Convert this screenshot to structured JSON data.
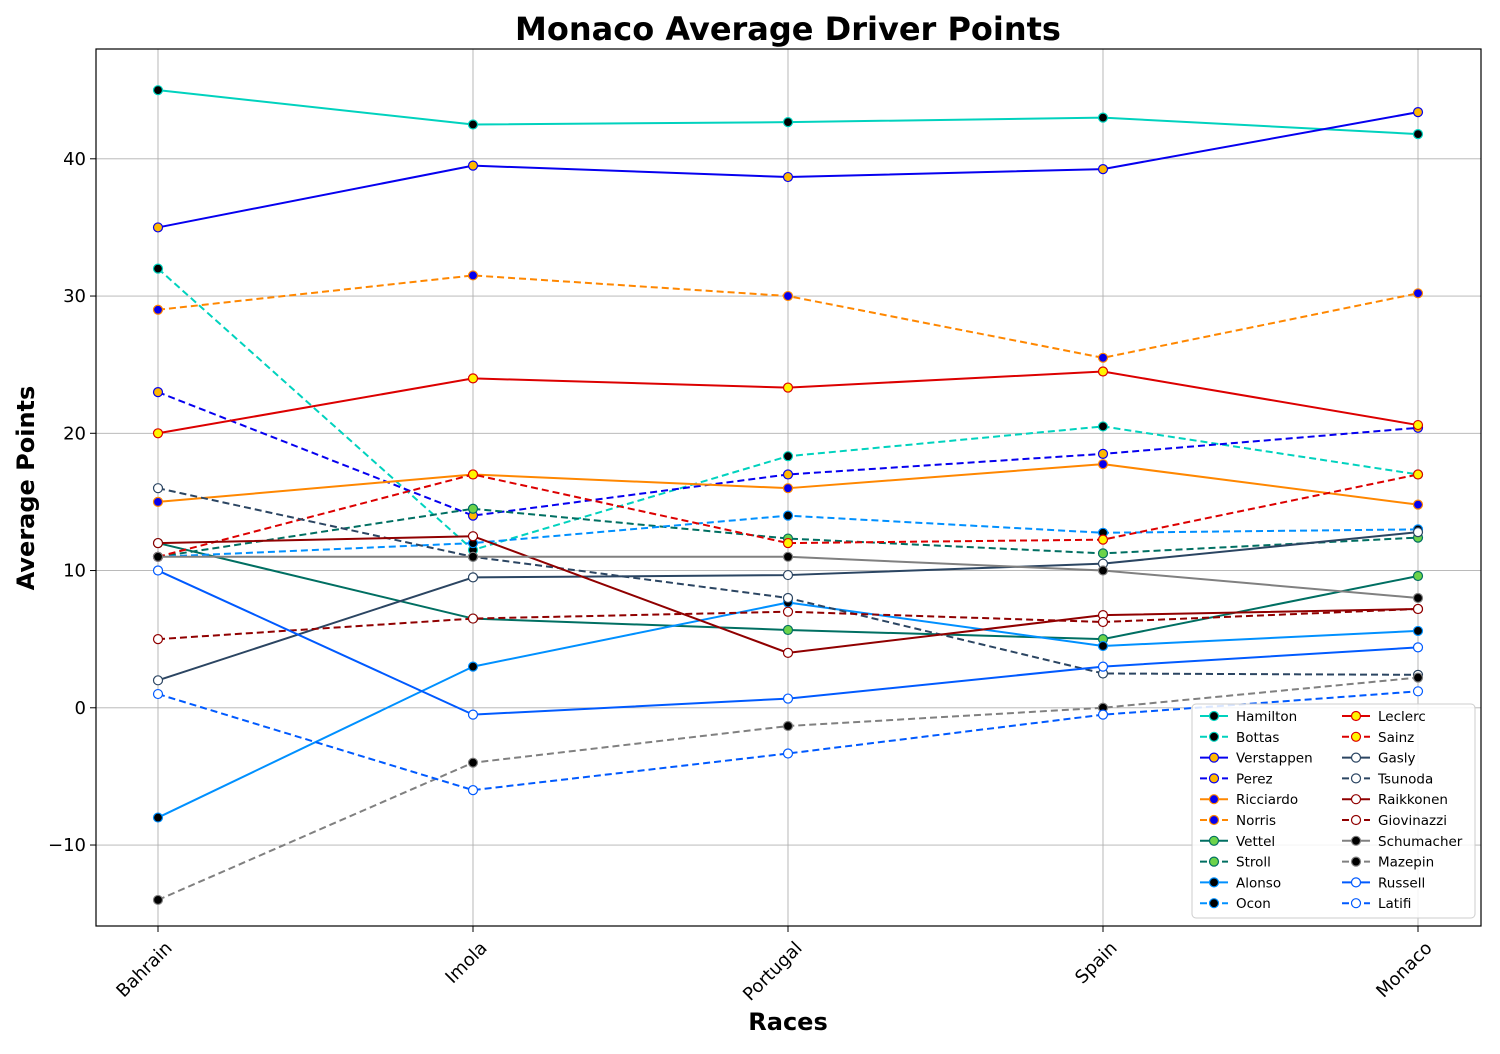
{
  "chart_data": {
    "type": "line",
    "title": "Monaco Average Driver Points",
    "xlabel": "Races",
    "ylabel": "Average Points",
    "categories": [
      "Bahrain",
      "Imola",
      "Portugal",
      "Spain",
      "Monaco"
    ],
    "ylim": [
      -15.9,
      48.0
    ],
    "yticks": [
      -10,
      0,
      10,
      20,
      30,
      40
    ],
    "ytick_labels": [
      "−10",
      "0",
      "10",
      "20",
      "30",
      "40"
    ],
    "grid": true,
    "legend_position": "lower-right",
    "legend_columns": 2,
    "series": [
      {
        "name": "Hamilton",
        "values": [
          45,
          42.5,
          42.67,
          43,
          41.8
        ],
        "color": "#00D2BE",
        "dash": "solid",
        "marker_fill": "#000000"
      },
      {
        "name": "Bottas",
        "values": [
          32,
          11.5,
          18.33,
          20.5,
          17
        ],
        "color": "#00D2BE",
        "dash": "dashed",
        "marker_fill": "#000000"
      },
      {
        "name": "Verstappen",
        "values": [
          35,
          39.5,
          38.67,
          39.25,
          43.4
        ],
        "color": "#0600EF",
        "dash": "solid",
        "marker_fill": "#FFB800"
      },
      {
        "name": "Perez",
        "values": [
          23,
          14,
          17,
          18.5,
          20.4
        ],
        "color": "#0600EF",
        "dash": "dashed",
        "marker_fill": "#FFB800"
      },
      {
        "name": "Ricciardo",
        "values": [
          15,
          17,
          16,
          17.75,
          14.8
        ],
        "color": "#FF8700",
        "dash": "solid",
        "marker_fill": "#0600EF"
      },
      {
        "name": "Norris",
        "values": [
          29,
          31.5,
          30,
          25.5,
          30.2
        ],
        "color": "#FF8700",
        "dash": "dashed",
        "marker_fill": "#0600EF"
      },
      {
        "name": "Vettel",
        "values": [
          12,
          6.5,
          5.67,
          5,
          9.6
        ],
        "color": "#006F62",
        "dash": "solid",
        "marker_fill": "#6CD34A"
      },
      {
        "name": "Stroll",
        "values": [
          11,
          14.5,
          12.33,
          11.25,
          12.4
        ],
        "color": "#006F62",
        "dash": "dashed",
        "marker_fill": "#6CD34A"
      },
      {
        "name": "Alonso",
        "values": [
          -8,
          3,
          7.67,
          4.5,
          5.6
        ],
        "color": "#0090FF",
        "dash": "solid",
        "marker_fill": "#000000"
      },
      {
        "name": "Ocon",
        "values": [
          11,
          12,
          14,
          12.75,
          13
        ],
        "color": "#0090FF",
        "dash": "dashed",
        "marker_fill": "#000000"
      },
      {
        "name": "Leclerc",
        "values": [
          20,
          24,
          23.33,
          24.5,
          20.6
        ],
        "color": "#DC0000",
        "dash": "solid",
        "marker_fill": "#FFF500"
      },
      {
        "name": "Sainz",
        "values": [
          11,
          17,
          12,
          12.25,
          17
        ],
        "color": "#DC0000",
        "dash": "dashed",
        "marker_fill": "#FFF500"
      },
      {
        "name": "Gasly",
        "values": [
          2,
          9.5,
          9.67,
          10.5,
          12.8
        ],
        "color": "#2B4562",
        "dash": "solid",
        "marker_fill": "#FFFFFF"
      },
      {
        "name": "Tsunoda",
        "values": [
          16,
          11,
          8,
          2.5,
          2.4
        ],
        "color": "#2B4562",
        "dash": "dashed",
        "marker_fill": "#FFFFFF"
      },
      {
        "name": "Raikkonen",
        "values": [
          12,
          12.5,
          4,
          6.75,
          7.2
        ],
        "color": "#900000",
        "dash": "solid",
        "marker_fill": "#FFFFFF"
      },
      {
        "name": "Giovinazzi",
        "values": [
          5,
          6.5,
          7,
          6.25,
          7.2
        ],
        "color": "#900000",
        "dash": "dashed",
        "marker_fill": "#FFFFFF"
      },
      {
        "name": "Schumacher",
        "values": [
          11,
          11,
          11,
          10,
          8
        ],
        "color": "#808080",
        "dash": "solid",
        "marker_fill": "#000000"
      },
      {
        "name": "Mazepin",
        "values": [
          -14,
          -4,
          -1.33,
          0,
          2.2
        ],
        "color": "#808080",
        "dash": "dashed",
        "marker_fill": "#000000"
      },
      {
        "name": "Russell",
        "values": [
          10,
          -0.5,
          0.67,
          3,
          4.4
        ],
        "color": "#005AFF",
        "dash": "solid",
        "marker_fill": "#FFFFFF"
      },
      {
        "name": "Latifi",
        "values": [
          1,
          -6,
          -3.33,
          -0.5,
          1.2
        ],
        "color": "#005AFF",
        "dash": "dashed",
        "marker_fill": "#FFFFFF"
      }
    ]
  }
}
